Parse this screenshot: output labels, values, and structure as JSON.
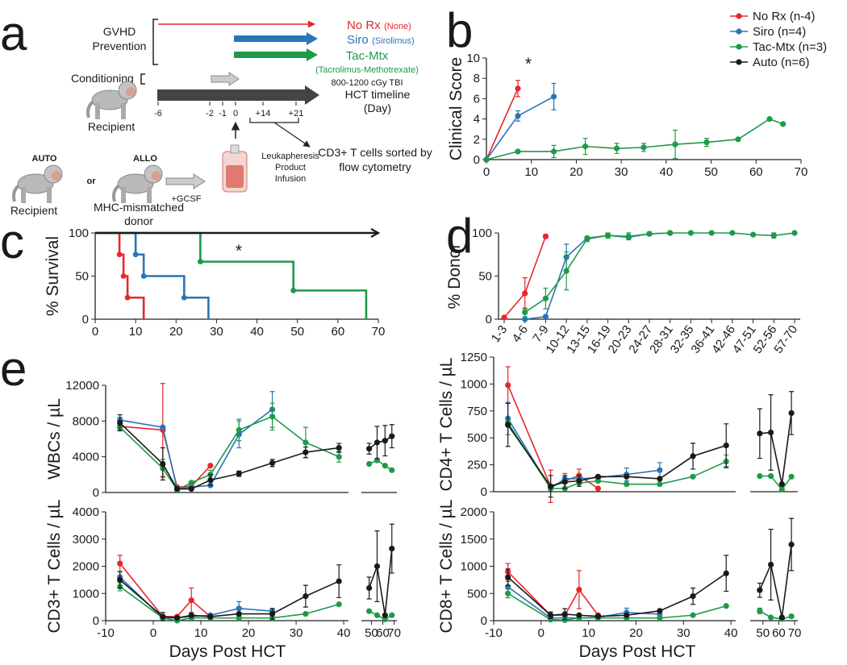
{
  "diagram": {
    "panel_label": "a",
    "gvhd_label": [
      "GVHD",
      "Prevention"
    ],
    "conditioning": "Conditioning",
    "regimens": [
      {
        "name": "No Rx",
        "detail": "(None)"
      },
      {
        "name": "Siro",
        "detail": "(Sirolimus)"
      },
      {
        "name": "Tac-Mtx",
        "detail": "(Tacrolimus-Methotrexate)"
      }
    ],
    "tbi": "800-1200 cGy TBI",
    "timeline_label": [
      "HCT timeline",
      "(Day)"
    ],
    "timeline_ticks": [
      "-6",
      "-2",
      "-1",
      "0",
      "+14",
      "+21"
    ],
    "recipient_top": "Recipient",
    "auto": "AUTO",
    "or": "or",
    "allo": "ALLO",
    "recipient_bottom": "Recipient",
    "donor": [
      "MHC-mismatched",
      "donor"
    ],
    "gcsf": "+GCSF",
    "infusion": [
      "Leukapheresis",
      "Product",
      "Infusion"
    ],
    "sorting": [
      "CD3+ T cells sorted by",
      "flow cytometry"
    ]
  },
  "chart_data": [
    {
      "type": "line",
      "panel_label": "b",
      "ylabel": "Clinical Score",
      "annotation": "*",
      "legend": "top-right",
      "xlim": [
        0,
        70
      ],
      "xticks": [
        0,
        10,
        20,
        30,
        40,
        50,
        60,
        70
      ],
      "ylim": [
        0,
        10
      ],
      "yticks": [
        0,
        2,
        4,
        6,
        8,
        10
      ],
      "series": [
        {
          "name": "No Rx (n-4)",
          "color": "#e8262b",
          "x": [
            0,
            7
          ],
          "values": [
            0,
            7
          ],
          "errors": [
            null,
            0.8
          ]
        },
        {
          "name": "Siro (n=4)",
          "color": "#2a74b8",
          "x": [
            0,
            7,
            15
          ],
          "values": [
            0,
            4.3,
            6.2
          ],
          "errors": [
            null,
            0.5,
            1.3
          ]
        },
        {
          "name": "Tac-Mtx (n=3)",
          "color": "#1e9a48",
          "x": [
            0,
            7,
            15,
            22,
            29,
            35,
            42,
            49,
            56,
            63,
            66
          ],
          "values": [
            0,
            0.8,
            0.8,
            1.3,
            1.1,
            1.2,
            1.5,
            1.7,
            2.0,
            4.0,
            3.5
          ],
          "errors": [
            null,
            null,
            0.6,
            0.8,
            0.5,
            0.4,
            1.4,
            0.4,
            null,
            null,
            null
          ]
        },
        {
          "name": "Auto (n=6)",
          "color": "#1a1a1a",
          "x": [],
          "values": [],
          "errors": []
        }
      ]
    },
    {
      "type": "step",
      "panel_label": "c",
      "ylabel": "% Survival",
      "annotation": "*",
      "xlim": [
        0,
        70
      ],
      "xticks": [
        0,
        10,
        20,
        30,
        40,
        50,
        60,
        70
      ],
      "ylim": [
        0,
        100
      ],
      "yticks": [
        0,
        50,
        100
      ],
      "series": [
        {
          "color": "#e8262b",
          "x": [
            0,
            6,
            7,
            8,
            12
          ],
          "values": [
            100,
            75,
            50,
            25,
            0
          ]
        },
        {
          "color": "#2a74b8",
          "x": [
            0,
            10,
            12,
            22,
            28
          ],
          "values": [
            100,
            75,
            50,
            25,
            0
          ]
        },
        {
          "color": "#1e9a48",
          "x": [
            0,
            26,
            49,
            67
          ],
          "values": [
            100,
            66.7,
            33.3,
            0
          ]
        },
        {
          "color": "#1a1a1a",
          "x": [
            0,
            70
          ],
          "values": [
            100,
            100
          ],
          "arrow": true
        }
      ]
    },
    {
      "type": "line",
      "panel_label": "d",
      "ylabel": "% Donor",
      "categories": [
        "1-3",
        "4-6",
        "7-9",
        "10-12",
        "13-15",
        "16-19",
        "20-23",
        "24-27",
        "28-31",
        "32-35",
        "36-41",
        "42-46",
        "47-51",
        "52-56",
        "57-70"
      ],
      "ylim": [
        0,
        100
      ],
      "yticks": [
        0,
        50,
        100
      ],
      "series": [
        {
          "color": "#e8262b",
          "values": [
            2,
            30,
            96,
            null,
            null,
            null,
            null,
            null,
            null,
            null,
            null,
            null,
            null,
            null,
            null
          ],
          "errors": [
            1,
            18,
            2,
            null,
            null,
            null,
            null,
            null,
            null,
            null,
            null,
            null,
            null,
            null,
            null
          ]
        },
        {
          "color": "#2a74b8",
          "values": [
            null,
            0,
            3,
            72,
            94,
            97,
            95,
            99,
            100,
            null,
            null,
            null,
            null,
            null,
            null
          ],
          "errors": [
            null,
            null,
            null,
            15,
            null,
            null,
            null,
            null,
            null,
            null,
            null,
            null,
            null,
            null,
            null
          ]
        },
        {
          "color": "#1e9a48",
          "values": [
            null,
            8,
            24,
            56,
            93,
            97,
            96,
            99,
            100,
            100,
            100,
            100,
            98,
            97,
            100
          ],
          "errors": [
            null,
            5,
            12,
            22,
            3,
            3,
            4,
            2,
            null,
            null,
            null,
            null,
            null,
            3,
            null
          ]
        }
      ]
    },
    {
      "type": "line",
      "panel_label": "e",
      "ylabel": "WBCs / µL",
      "xlim": [
        -10,
        41
      ],
      "x2lim": [
        44,
        71
      ],
      "ylim": [
        0,
        12000
      ],
      "yticks": [
        0,
        4000,
        8000,
        12000
      ],
      "series": [
        {
          "color": "#e8262b",
          "x": [
            -7,
            2,
            5,
            8,
            12
          ],
          "values": [
            7400,
            7000,
            600,
            700,
            3000
          ],
          "errors": [
            300,
            5200,
            null,
            null,
            null
          ]
        },
        {
          "color": "#2a74b8",
          "x": [
            -7,
            2,
            5,
            8,
            12,
            18,
            25
          ],
          "values": [
            8100,
            7300,
            400,
            600,
            800,
            6500,
            9300
          ],
          "errors": [
            300,
            null,
            null,
            null,
            null,
            1500,
            2000
          ]
        },
        {
          "color": "#1e9a48",
          "x": [
            -7,
            2,
            5,
            8,
            12,
            18,
            25,
            32,
            39,
            48,
            55,
            62,
            68
          ],
          "values": [
            7300,
            2700,
            300,
            1100,
            2000,
            7000,
            8500,
            5600,
            4000,
            3200,
            3600,
            3000,
            2500
          ],
          "errors": [
            300,
            1000,
            null,
            null,
            500,
            1200,
            1500,
            1700,
            600,
            null,
            null,
            null,
            null
          ]
        },
        {
          "color": "#1a1a1a",
          "x": [
            -7,
            2,
            5,
            8,
            12,
            18,
            25,
            32,
            39,
            48,
            55,
            62,
            68
          ],
          "values": [
            7800,
            3200,
            400,
            400,
            1400,
            2100,
            3300,
            4500,
            5000,
            4900,
            5600,
            5800,
            6300
          ],
          "errors": [
            900,
            1800,
            null,
            null,
            600,
            300,
            400,
            600,
            500,
            600,
            1800,
            1700,
            1300
          ]
        }
      ]
    },
    {
      "type": "line",
      "ylabel": "CD4+ T Cells / µL",
      "xlim": [
        -10,
        41
      ],
      "x2lim": [
        44,
        71
      ],
      "ylim": [
        0,
        1250
      ],
      "yticks": [
        0,
        250,
        500,
        750,
        1000,
        1250
      ],
      "series": [
        {
          "color": "#e8262b",
          "x": [
            -7,
            2,
            5,
            8,
            12
          ],
          "values": [
            990,
            50,
            100,
            150,
            30
          ],
          "errors": [
            170,
            150,
            70,
            60,
            null
          ]
        },
        {
          "color": "#2a74b8",
          "x": [
            -7,
            2,
            5,
            8,
            12,
            18,
            25
          ],
          "values": [
            680,
            30,
            120,
            120,
            130,
            160,
            200
          ],
          "errors": [
            150,
            null,
            null,
            null,
            null,
            60,
            70
          ]
        },
        {
          "color": "#1e9a48",
          "x": [
            -7,
            2,
            5,
            8,
            12,
            18,
            25,
            32,
            39,
            48,
            55,
            62,
            68
          ],
          "values": [
            640,
            30,
            30,
            80,
            100,
            70,
            70,
            140,
            280,
            145,
            145,
            20,
            140
          ],
          "errors": [
            null,
            null,
            null,
            null,
            null,
            null,
            null,
            null,
            60,
            null,
            null,
            null,
            null
          ]
        },
        {
          "color": "#1a1a1a",
          "x": [
            -7,
            2,
            5,
            8,
            12,
            18,
            25,
            32,
            39,
            48,
            55,
            62,
            68
          ],
          "values": [
            620,
            50,
            90,
            100,
            140,
            140,
            120,
            330,
            430,
            540,
            550,
            70,
            730
          ],
          "errors": [
            200,
            100,
            60,
            50,
            null,
            null,
            null,
            120,
            200,
            230,
            350,
            null,
            200
          ]
        }
      ]
    },
    {
      "type": "line",
      "ylabel": "CD3+ T Cells / µL",
      "xlabel": "Days Post HCT",
      "xlim": [
        -10,
        41
      ],
      "xticks": [
        -10,
        0,
        10,
        20,
        30,
        40
      ],
      "x2lim": [
        44,
        71
      ],
      "x2ticks": [
        50,
        60,
        70
      ],
      "ylim": [
        0,
        4000
      ],
      "yticks": [
        0,
        1000,
        2000,
        3000,
        4000
      ],
      "series": [
        {
          "color": "#e8262b",
          "x": [
            -7,
            2,
            5,
            8,
            12
          ],
          "values": [
            2100,
            150,
            150,
            750,
            150
          ],
          "errors": [
            300,
            null,
            null,
            450,
            null
          ]
        },
        {
          "color": "#2a74b8",
          "x": [
            -7,
            2,
            5,
            8,
            12,
            18,
            25
          ],
          "values": [
            1600,
            100,
            100,
            150,
            200,
            450,
            350
          ],
          "errors": [
            200,
            null,
            null,
            null,
            null,
            250,
            null
          ]
        },
        {
          "color": "#1e9a48",
          "x": [
            -7,
            2,
            5,
            8,
            12,
            18,
            25,
            32,
            39,
            48,
            55,
            62,
            68
          ],
          "values": [
            1250,
            100,
            0,
            100,
            100,
            100,
            100,
            250,
            600,
            350,
            200,
            50,
            200
          ],
          "errors": [
            150,
            null,
            null,
            null,
            null,
            null,
            null,
            null,
            null,
            null,
            null,
            null,
            null
          ]
        },
        {
          "color": "#1a1a1a",
          "x": [
            -7,
            2,
            5,
            8,
            12,
            18,
            25,
            32,
            39,
            48,
            55,
            62,
            68
          ],
          "values": [
            1500,
            150,
            100,
            200,
            150,
            250,
            250,
            900,
            1450,
            1200,
            2000,
            200,
            2650
          ],
          "errors": [
            300,
            150,
            null,
            null,
            null,
            null,
            200,
            400,
            600,
            400,
            1300,
            null,
            900
          ]
        }
      ]
    },
    {
      "type": "line",
      "ylabel": "CD8+ T Cells / µL",
      "xlabel": "Days Post HCT",
      "xlim": [
        -10,
        41
      ],
      "xticks": [
        -10,
        0,
        10,
        20,
        30,
        40
      ],
      "x2lim": [
        44,
        71
      ],
      "x2ticks": [
        50,
        60,
        70
      ],
      "ylim": [
        0,
        2000
      ],
      "yticks": [
        0,
        500,
        1000,
        1500,
        2000
      ],
      "series": [
        {
          "color": "#e8262b",
          "x": [
            -7,
            2,
            5,
            8,
            12
          ],
          "values": [
            900,
            100,
            100,
            570,
            100
          ],
          "errors": [
            150,
            null,
            null,
            350,
            null
          ]
        },
        {
          "color": "#2a74b8",
          "x": [
            -7,
            2,
            5,
            8,
            12,
            18,
            25
          ],
          "values": [
            620,
            50,
            50,
            50,
            60,
            150,
            120
          ],
          "errors": [
            100,
            null,
            null,
            null,
            null,
            80,
            null
          ]
        },
        {
          "color": "#1e9a48",
          "x": [
            -7,
            2,
            5,
            8,
            12,
            18,
            25,
            32,
            39,
            48,
            55,
            62,
            68
          ],
          "values": [
            500,
            20,
            10,
            50,
            50,
            50,
            50,
            100,
            270,
            180,
            60,
            30,
            80
          ],
          "errors": [
            80,
            null,
            null,
            null,
            null,
            null,
            null,
            null,
            null,
            50,
            null,
            null,
            null
          ]
        },
        {
          "color": "#1a1a1a",
          "x": [
            -7,
            2,
            5,
            8,
            12,
            18,
            25,
            32,
            39,
            48,
            55,
            62,
            68
          ],
          "values": [
            800,
            100,
            120,
            100,
            80,
            100,
            180,
            450,
            870,
            560,
            1030,
            60,
            1400
          ],
          "errors": [
            150,
            60,
            100,
            null,
            null,
            null,
            null,
            150,
            330,
            130,
            650,
            null,
            480
          ]
        }
      ]
    }
  ]
}
